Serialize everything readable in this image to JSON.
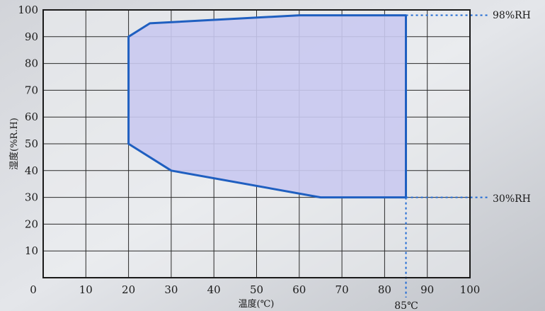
{
  "chart_data": {
    "type": "area",
    "title": "",
    "xlabel": "温度(℃)",
    "ylabel": "湿度(%R.H)",
    "xlim": [
      0,
      100
    ],
    "ylim": [
      0,
      100
    ],
    "x_ticks": [
      0,
      10,
      20,
      30,
      40,
      50,
      60,
      70,
      80,
      90,
      100
    ],
    "y_ticks": [
      10,
      20,
      30,
      40,
      50,
      60,
      70,
      80,
      90,
      100
    ],
    "grid": true,
    "series": [
      {
        "points": [
          {
            "x": 20,
            "y": 50
          },
          {
            "x": 20,
            "y": 90
          },
          {
            "x": 25,
            "y": 95
          },
          {
            "x": 60,
            "y": 98
          },
          {
            "x": 85,
            "y": 98
          },
          {
            "x": 85,
            "y": 30
          },
          {
            "x": 65,
            "y": 30
          },
          {
            "x": 30,
            "y": 40
          },
          {
            "x": 20,
            "y": 50
          }
        ]
      }
    ],
    "annotations": [
      {
        "label": "98%RH",
        "value": 98,
        "axis": "y"
      },
      {
        "label": "30%RH",
        "value": 30,
        "axis": "y"
      },
      {
        "label": "85℃",
        "value": 85,
        "axis": "x"
      }
    ],
    "colors": {
      "outline": "#1f5fc0",
      "fill": "#c9c9f0",
      "guide": "#1f6ad4",
      "background": "#eef0f3",
      "grid": "#2a2a2a"
    }
  }
}
